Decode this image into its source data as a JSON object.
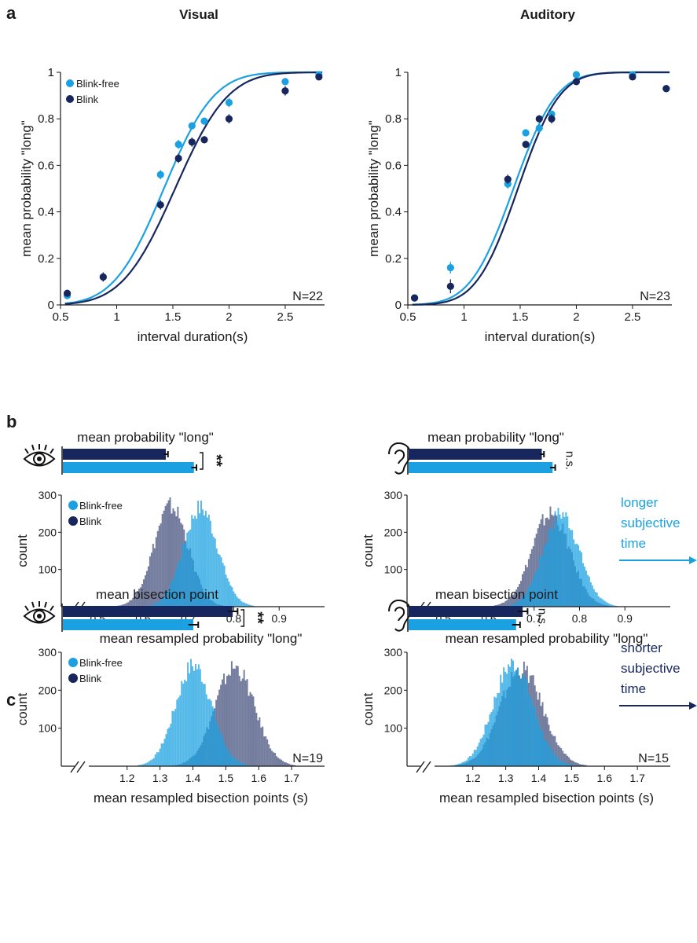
{
  "colors": {
    "blink_free": "#1ba1e2",
    "blink": "#17275e",
    "axis": "#1a1a1a"
  },
  "panels": {
    "a": "a",
    "b": "b",
    "c": "c"
  },
  "columns": {
    "visual": "Visual",
    "auditory": "Auditory"
  },
  "icons": {
    "visual": "eye-icon",
    "auditory": "ear-icon"
  },
  "chart_data": [
    {
      "id": "a-visual",
      "type": "scatter",
      "title": "Visual",
      "xlabel": "interval duration(s)",
      "ylabel": "mean probability \"long\"",
      "xlim": [
        0.5,
        2.85
      ],
      "ylim": [
        0,
        1
      ],
      "xticks": [
        "0.5",
        "1",
        "1.5",
        "2",
        "2.5"
      ],
      "yticks": [
        "0",
        "0.2",
        "0.4",
        "0.6",
        "0.8",
        "1"
      ],
      "annotation": "N=22",
      "legend": {
        "placement": "top-left",
        "entries": [
          "Blink-free",
          "Blink"
        ]
      },
      "series": [
        {
          "name": "Blink-free",
          "x": [
            0.56,
            0.88,
            1.39,
            1.55,
            1.67,
            1.78,
            2.0,
            2.5,
            2.8
          ],
          "y": [
            0.04,
            0.12,
            0.56,
            0.69,
            0.77,
            0.79,
            0.87,
            0.96,
            0.99
          ],
          "err": [
            0.01,
            0.015,
            0.02,
            0.02,
            0.015,
            0.015,
            0.02,
            0.015,
            0.01
          ],
          "fit": {
            "mu": 1.42,
            "sigma": 0.35
          }
        },
        {
          "name": "Blink",
          "x": [
            0.56,
            0.88,
            1.39,
            1.55,
            1.67,
            1.78,
            2.0,
            2.5,
            2.8
          ],
          "y": [
            0.05,
            0.12,
            0.43,
            0.63,
            0.7,
            0.71,
            0.8,
            0.92,
            0.98
          ],
          "err": [
            0.015,
            0.02,
            0.02,
            0.02,
            0.02,
            0.015,
            0.02,
            0.02,
            0.01
          ],
          "fit": {
            "mu": 1.52,
            "sigma": 0.37
          }
        }
      ]
    },
    {
      "id": "a-auditory",
      "type": "scatter",
      "title": "Auditory",
      "xlabel": "interval duration(s)",
      "ylabel": "mean probability \"long\"",
      "xlim": [
        0.5,
        2.85
      ],
      "ylim": [
        0,
        1
      ],
      "xticks": [
        "0.5",
        "1",
        "1.5",
        "2",
        "2.5"
      ],
      "yticks": [
        "0",
        "0.2",
        "0.4",
        "0.6",
        "0.8",
        "1"
      ],
      "annotation": "N=23",
      "series": [
        {
          "name": "Blink-free",
          "x": [
            0.56,
            0.88,
            1.39,
            1.55,
            1.67,
            1.78,
            2.0,
            2.5,
            2.8
          ],
          "y": [
            0.03,
            0.16,
            0.52,
            0.74,
            0.76,
            0.82,
            0.99,
            0.99,
            0.93
          ],
          "err": [
            0.01,
            0.025,
            0.02,
            0.015,
            0.02,
            0.015,
            0.01,
            0.01,
            0.01
          ],
          "fit": {
            "mu": 1.44,
            "sigma": 0.3
          }
        },
        {
          "name": "Blink",
          "x": [
            0.56,
            0.88,
            1.39,
            1.55,
            1.67,
            1.78,
            2.0,
            2.5,
            2.8
          ],
          "y": [
            0.03,
            0.08,
            0.54,
            0.69,
            0.8,
            0.8,
            0.96,
            0.98,
            0.93
          ],
          "err": [
            0.01,
            0.03,
            0.02,
            0.015,
            0.015,
            0.02,
            0.01,
            0.01,
            0.015
          ],
          "fit": {
            "mu": 1.48,
            "sigma": 0.29
          }
        }
      ]
    },
    {
      "id": "b-visual",
      "type": "bar",
      "title": "mean probability \"long\"",
      "categories": [
        "Blink",
        "Blink-free"
      ],
      "values": [
        0.66,
        0.725
      ],
      "err": [
        0.005,
        0.006
      ],
      "xlim": [
        0.42,
        1.0
      ],
      "significance": "**"
    },
    {
      "id": "b-auditory",
      "type": "bar",
      "title": "mean probability \"long\"",
      "categories": [
        "Blink",
        "Blink-free"
      ],
      "values": [
        0.73,
        0.755
      ],
      "err": [
        0.005,
        0.006
      ],
      "xlim": [
        0.42,
        1.0
      ],
      "significance": "n.s."
    },
    {
      "id": "b-visual-hist",
      "type": "histogram",
      "xlabel": "mean resampled probability \"long\"",
      "ylabel": "count",
      "xlim": [
        0.42,
        1.0
      ],
      "ylim": [
        0,
        300
      ],
      "xticks": [
        "0.5",
        "0.6",
        "0.7",
        "0.8",
        "0.9"
      ],
      "yticks": [
        "100",
        "200",
        "300"
      ],
      "legend": {
        "placement": "top-left",
        "entries": [
          "Blink-free",
          "Blink"
        ]
      },
      "series": [
        {
          "name": "Blink-free",
          "mean": 0.725,
          "sd": 0.038,
          "peak": 265
        },
        {
          "name": "Blink",
          "mean": 0.66,
          "sd": 0.038,
          "peak": 270
        }
      ]
    },
    {
      "id": "b-auditory-hist",
      "type": "histogram",
      "xlabel": "mean resampled probability \"long\"",
      "ylabel": "count",
      "xlim": [
        0.42,
        1.0
      ],
      "ylim": [
        0,
        300
      ],
      "xticks": [
        "0.5",
        "0.6",
        "0.7",
        "0.8",
        "0.9"
      ],
      "yticks": [
        "100",
        "200",
        "300"
      ],
      "side_note": {
        "lines": [
          "longer",
          "subjective",
          "time"
        ]
      },
      "series": [
        {
          "name": "Blink-free",
          "mean": 0.758,
          "sd": 0.04,
          "peak": 250
        },
        {
          "name": "Blink",
          "mean": 0.735,
          "sd": 0.042,
          "peak": 250
        }
      ]
    },
    {
      "id": "c-visual",
      "type": "bar",
      "title": "mean bisection point",
      "categories": [
        "Blink",
        "Blink-free"
      ],
      "values": [
        1.52,
        1.4
      ],
      "err": [
        0.015,
        0.015
      ],
      "xlim": [
        1.0,
        1.8
      ],
      "significance": "**"
    },
    {
      "id": "c-auditory",
      "type": "bar",
      "title": "mean bisection point",
      "categories": [
        "Blink",
        "Blink-free"
      ],
      "values": [
        1.35,
        1.33
      ],
      "err": [
        0.015,
        0.012
      ],
      "xlim": [
        1.0,
        1.8
      ],
      "significance": "n.s."
    },
    {
      "id": "c-visual-hist",
      "type": "histogram",
      "xlabel": "mean resampled bisection points (s)",
      "ylabel": "count",
      "xlim": [
        1.0,
        1.8
      ],
      "ylim": [
        0,
        300
      ],
      "xticks": [
        "1.2",
        "1.3",
        "1.4",
        "1.5",
        "1.6",
        "1.7"
      ],
      "yticks": [
        "100",
        "200",
        "300"
      ],
      "annotation": "N=19",
      "legend": {
        "placement": "top-left",
        "entries": [
          "Blink-free",
          "Blink"
        ]
      },
      "series": [
        {
          "name": "Blink-free",
          "mean": 1.4,
          "sd": 0.055,
          "peak": 265
        },
        {
          "name": "Blink",
          "mean": 1.525,
          "sd": 0.06,
          "peak": 260
        }
      ]
    },
    {
      "id": "c-auditory-hist",
      "type": "histogram",
      "xlabel": "mean resampled bisection points (s)",
      "ylabel": "count",
      "xlim": [
        1.0,
        1.8
      ],
      "ylim": [
        0,
        300
      ],
      "xticks": [
        "1.2",
        "1.3",
        "1.4",
        "1.5",
        "1.6",
        "1.7"
      ],
      "yticks": [
        "100",
        "200",
        "300"
      ],
      "annotation": "N=15",
      "side_note": {
        "lines": [
          "shorter",
          "subjective",
          "time"
        ]
      },
      "series": [
        {
          "name": "Blink-free",
          "mean": 1.32,
          "sd": 0.06,
          "peak": 270
        },
        {
          "name": "Blink",
          "mean": 1.345,
          "sd": 0.065,
          "peak": 255
        }
      ]
    }
  ]
}
